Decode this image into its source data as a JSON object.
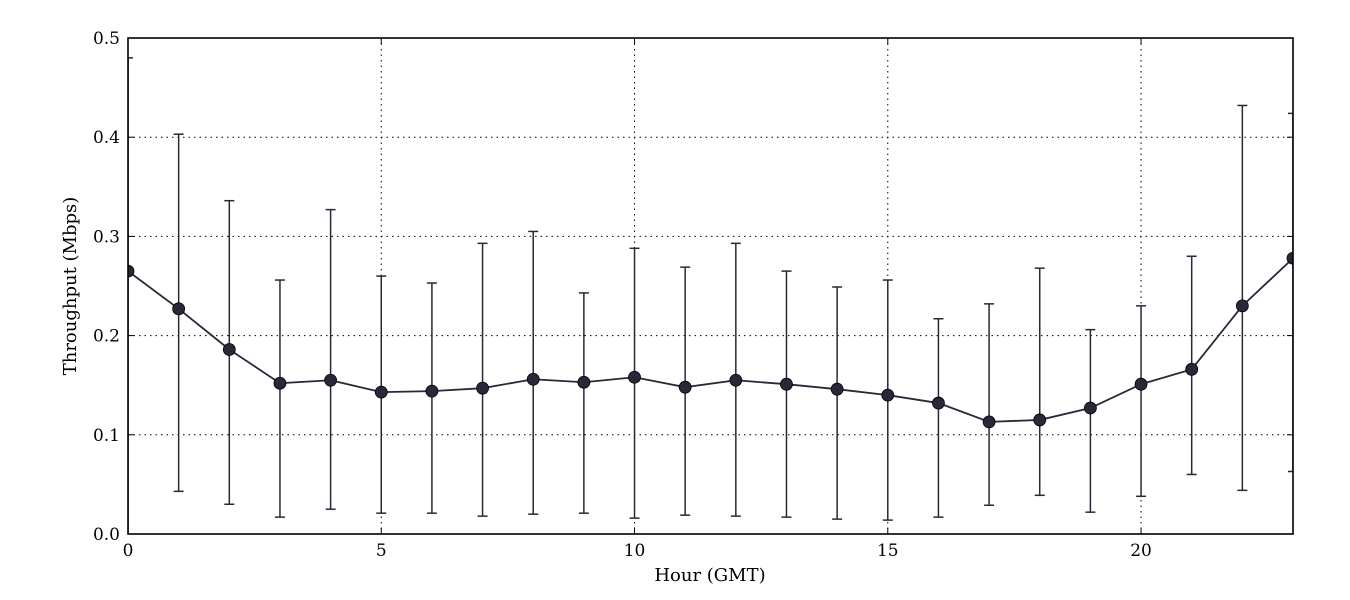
{
  "chart_data": {
    "type": "line",
    "xlabel": "Hour (GMT)",
    "ylabel": "Throughput (Mbps)",
    "xlim": [
      0,
      23
    ],
    "ylim": [
      0,
      0.5
    ],
    "xticks": [
      "0",
      "5",
      "10",
      "15",
      "20"
    ],
    "yticks": [
      "0.0",
      "0.1",
      "0.2",
      "0.3",
      "0.4",
      "0.5"
    ],
    "grid": true,
    "legend": "none",
    "color": "#2b2738",
    "series": [
      {
        "x": [
          0,
          1,
          2,
          3,
          4,
          5,
          6,
          7,
          8,
          9,
          10,
          11,
          12,
          13,
          14,
          15,
          16,
          17,
          18,
          19,
          20,
          21,
          22,
          23
        ],
        "y": [
          0.265,
          0.227,
          0.186,
          0.152,
          0.155,
          0.143,
          0.144,
          0.147,
          0.156,
          0.153,
          0.158,
          0.148,
          0.155,
          0.151,
          0.146,
          0.14,
          0.132,
          0.113,
          0.115,
          0.127,
          0.151,
          0.166,
          0.23,
          0.278
        ],
        "err_low": [
          -0.06,
          0.043,
          0.03,
          0.017,
          0.025,
          0.021,
          0.021,
          0.018,
          0.02,
          0.021,
          0.016,
          0.019,
          0.018,
          0.017,
          0.015,
          0.014,
          0.017,
          0.029,
          0.039,
          0.022,
          0.038,
          0.06,
          0.044,
          0.063
        ],
        "err_high": [
          0.48,
          0.403,
          0.336,
          0.256,
          0.327,
          0.26,
          0.253,
          0.293,
          0.305,
          0.243,
          0.288,
          0.269,
          0.293,
          0.265,
          0.249,
          0.256,
          0.217,
          0.232,
          0.268,
          0.206,
          0.23,
          0.28,
          0.432,
          0.424
        ]
      }
    ]
  }
}
